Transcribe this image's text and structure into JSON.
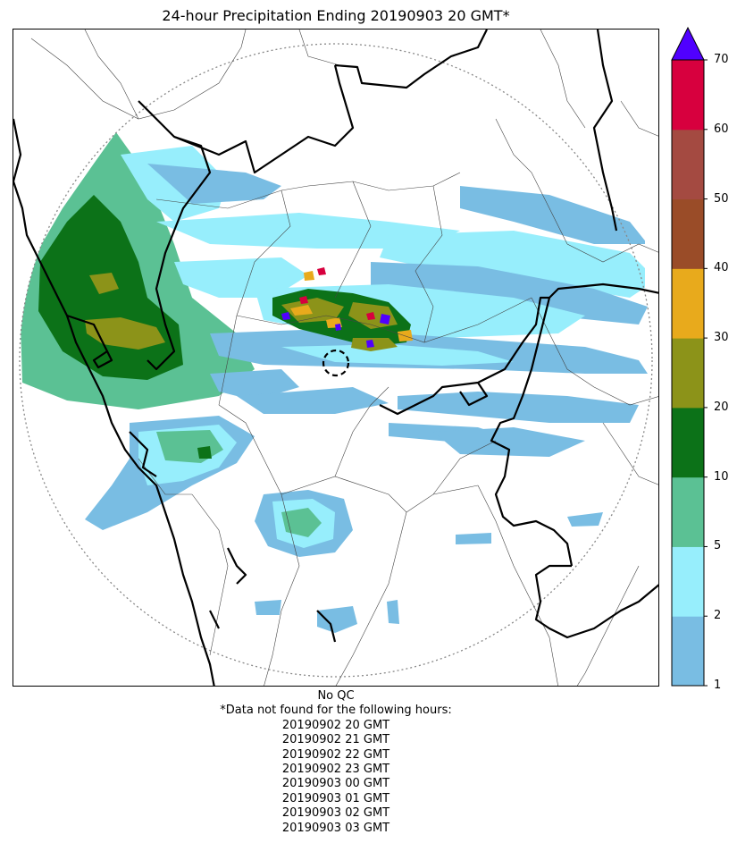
{
  "title": "24-hour Precipitation Ending 20190903 20 GMT*",
  "colorbar": {
    "ticks": [
      "1",
      "2",
      "5",
      "10",
      "20",
      "30",
      "40",
      "50",
      "60",
      "70"
    ],
    "colors": [
      "#79bde3",
      "#97eefc",
      "#5bc194",
      "#0c7218",
      "#8c9319",
      "#e8aa1c",
      "#9a4c28",
      "#a44a41",
      "#d7003e"
    ],
    "extend_color": "#5000ff"
  },
  "footer": {
    "qc": "No QC",
    "note": "*Data not found for the following hours:",
    "missing_hours": [
      "20190902 20 GMT",
      "20190902 21 GMT",
      "20190902 22 GMT",
      "20190902 23 GMT",
      "20190903 00 GMT",
      "20190903 01 GMT",
      "20190903 02 GMT",
      "20190903 03 GMT"
    ]
  }
}
